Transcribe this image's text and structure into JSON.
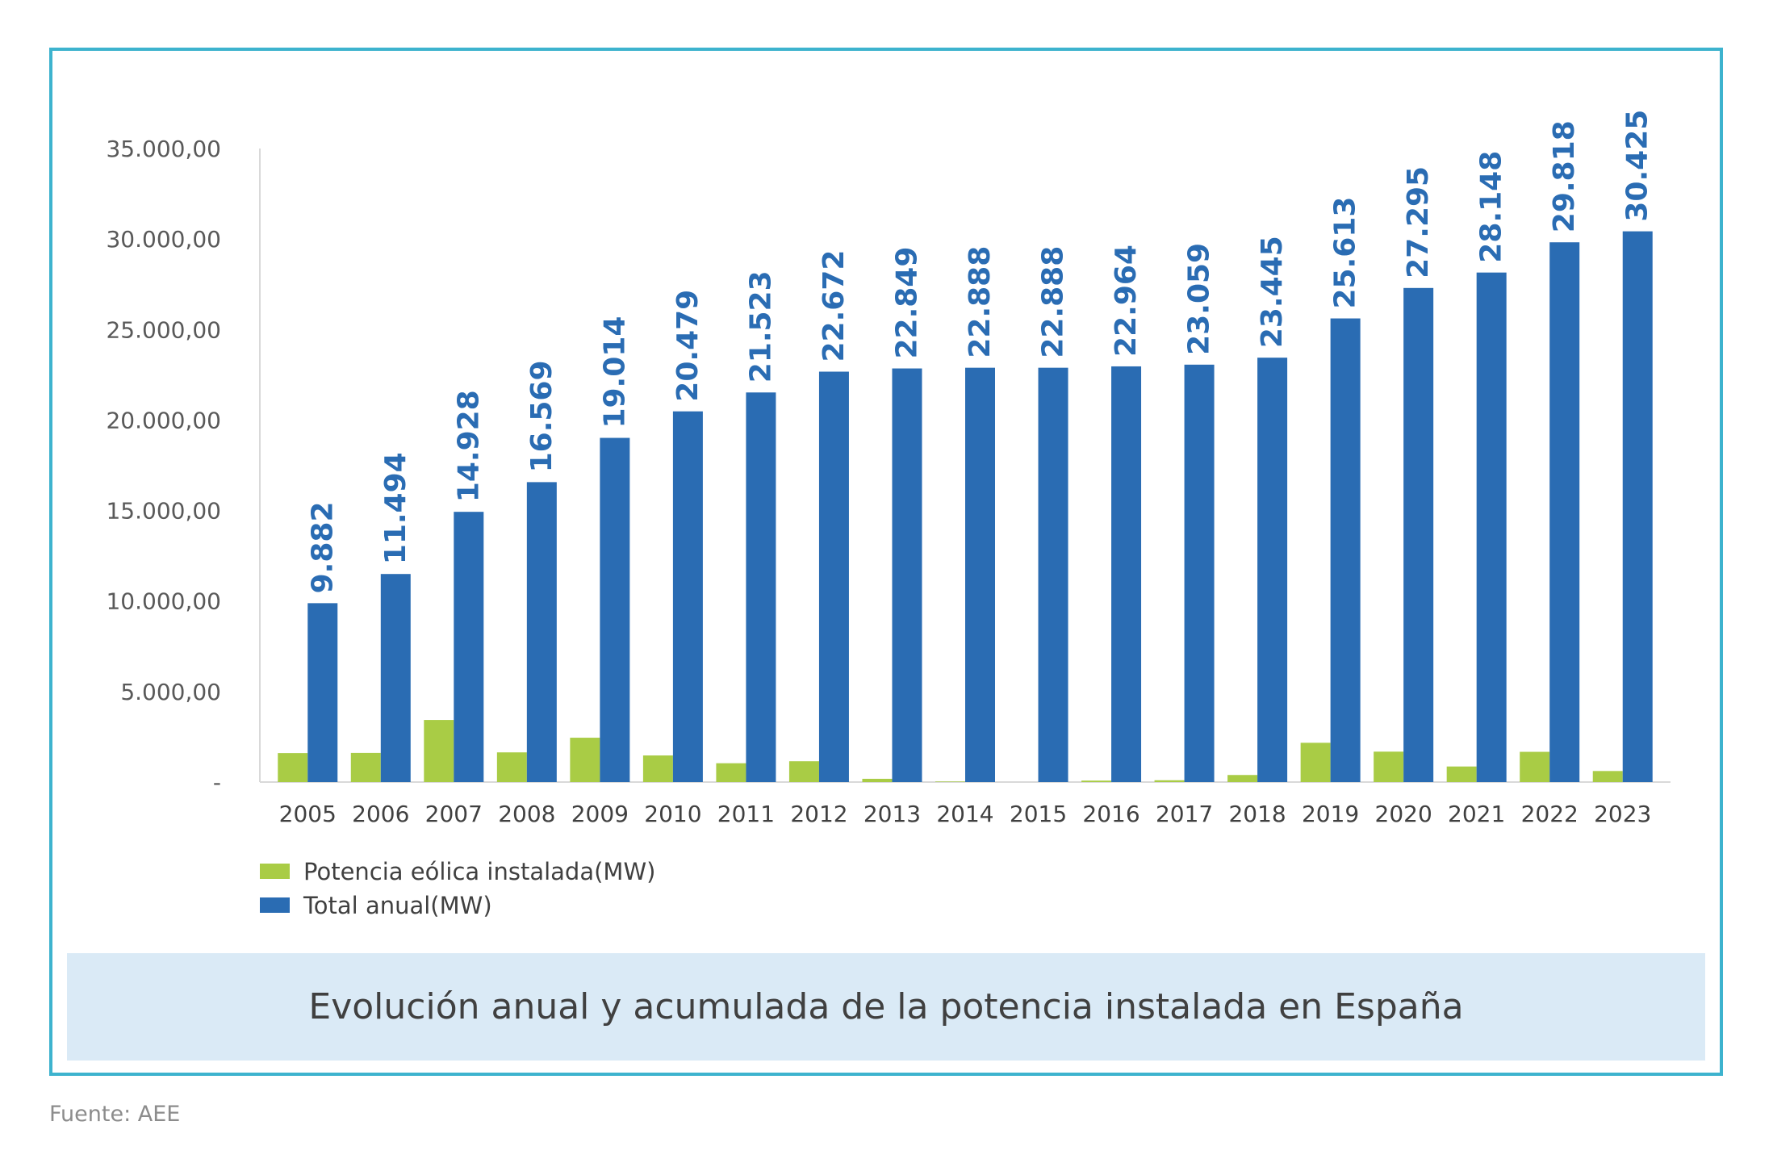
{
  "caption": "Evolución anual y acumulada de la potencia instalada en España",
  "source": "Fuente: AEE",
  "colors": {
    "frame": "#3db3ce",
    "annual": "#a9cc45",
    "total": "#2a6cb3",
    "label": "#2a6cb3",
    "caption_bg": "#daeaf6"
  },
  "chart_data": {
    "type": "bar",
    "categories": [
      "2005",
      "2006",
      "2007",
      "2008",
      "2009",
      "2010",
      "2011",
      "2012",
      "2013",
      "2014",
      "2015",
      "2016",
      "2017",
      "2018",
      "2019",
      "2020",
      "2021",
      "2022",
      "2023"
    ],
    "series": [
      {
        "name": "Potencia eólica instalada(MW)",
        "values": [
          1600,
          1610,
          3430,
          1640,
          2450,
          1470,
          1040,
          1150,
          180,
          30,
          0,
          80,
          100,
          390,
          2170,
          1680,
          860,
          1670,
          610
        ]
      },
      {
        "name": "Total anual(MW)",
        "values": [
          9882,
          11494,
          14928,
          16569,
          19014,
          20479,
          21523,
          22672,
          22849,
          22888,
          22888,
          22964,
          23059,
          23445,
          25613,
          27295,
          28148,
          29818,
          30425
        ],
        "data_labels": [
          "9.882",
          "11.494",
          "14.928",
          "16.569",
          "19.014",
          "20.479",
          "21.523",
          "22.672",
          "22.849",
          "22.888",
          "22.888",
          "22.964",
          "23.059",
          "23.445",
          "25.613",
          "27.295",
          "28.148",
          "29.818",
          "30.425"
        ]
      }
    ],
    "y_ticks": [
      {
        "value": 0,
        "label": "-"
      },
      {
        "value": 5000,
        "label": "5.000,00"
      },
      {
        "value": 10000,
        "label": "10.000,00"
      },
      {
        "value": 15000,
        "label": "15.000,00"
      },
      {
        "value": 20000,
        "label": "20.000,00"
      },
      {
        "value": 25000,
        "label": "25.000,00"
      },
      {
        "value": 30000,
        "label": "30.000,00"
      },
      {
        "value": 35000,
        "label": "35.000,00"
      }
    ],
    "ylim": [
      0,
      35000
    ],
    "xlabel": "",
    "ylabel": "",
    "grid": false,
    "legend_position": "bottom-left"
  }
}
